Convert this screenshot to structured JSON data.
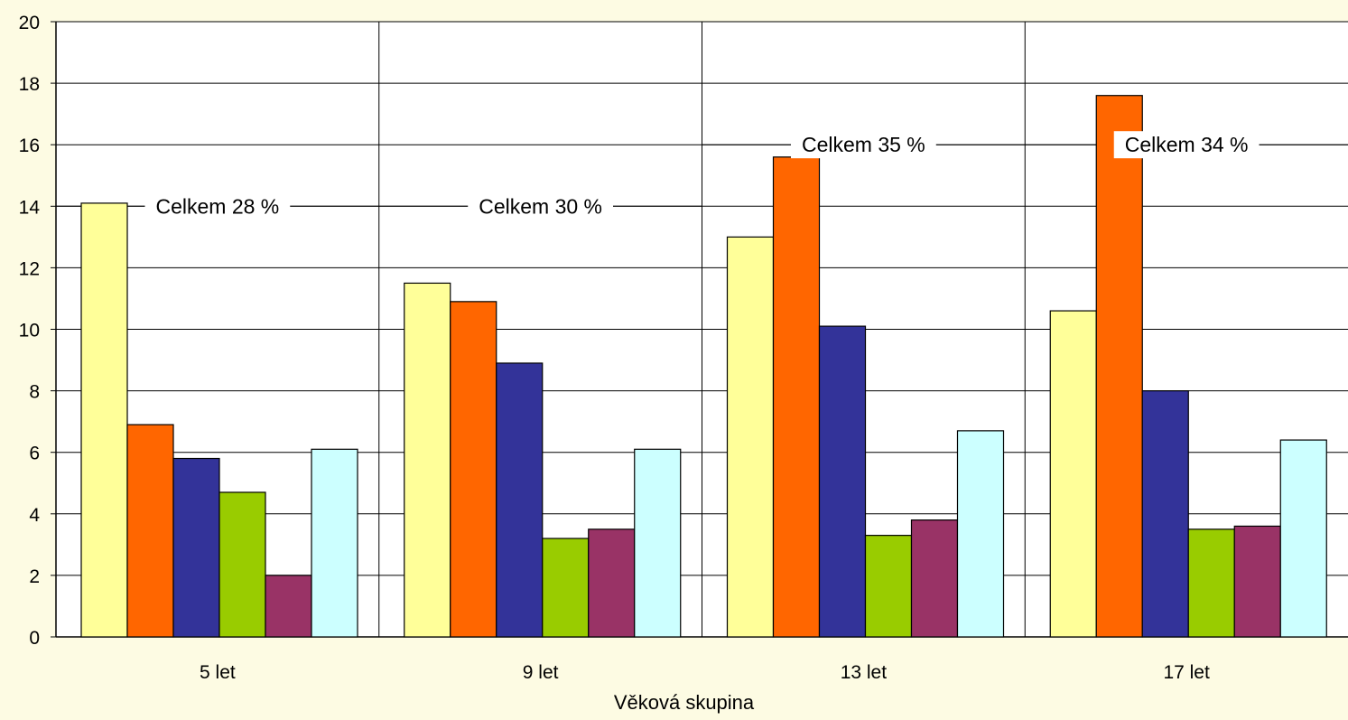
{
  "chart_data": {
    "type": "bar",
    "title": "",
    "xlabel": "Věková skupina",
    "ylabel": "",
    "ylim": [
      0,
      20
    ],
    "yticks": [
      0,
      2,
      4,
      6,
      8,
      10,
      12,
      14,
      16,
      18,
      20
    ],
    "ytick_labels": [
      "0",
      "2",
      "4",
      "6",
      "8",
      "10",
      "12",
      "14",
      "16",
      "18",
      "20"
    ],
    "grid": true,
    "legend": "none",
    "categories": [
      "5 let",
      "9 let",
      "13 let",
      "17 let"
    ],
    "series": [
      {
        "color": "#ffff99",
        "values": [
          14.1,
          11.5,
          13.0,
          10.6
        ]
      },
      {
        "color": "#ff6600",
        "values": [
          6.9,
          10.9,
          15.6,
          17.6
        ]
      },
      {
        "color": "#333399",
        "values": [
          5.8,
          8.9,
          10.1,
          8.0
        ]
      },
      {
        "color": "#99cc00",
        "values": [
          4.7,
          3.2,
          3.3,
          3.5
        ]
      },
      {
        "color": "#993366",
        "values": [
          2.0,
          3.5,
          3.8,
          3.6
        ]
      },
      {
        "color": "#ccffff",
        "values": [
          6.1,
          6.1,
          6.7,
          6.4
        ]
      }
    ],
    "annotations": [
      {
        "category": "5 let",
        "text": "Celkem 28 %",
        "y": 14
      },
      {
        "category": "9 let",
        "text": "Celkem 30 %",
        "y": 14
      },
      {
        "category": "13 let",
        "text": "Celkem 35 %",
        "y": 16
      },
      {
        "category": "17 let",
        "text": "Celkem 34 %",
        "y": 16
      }
    ]
  },
  "colors": {
    "background": "#fdfbe3",
    "plot_area": "#ffffff",
    "gridline": "#000000"
  }
}
